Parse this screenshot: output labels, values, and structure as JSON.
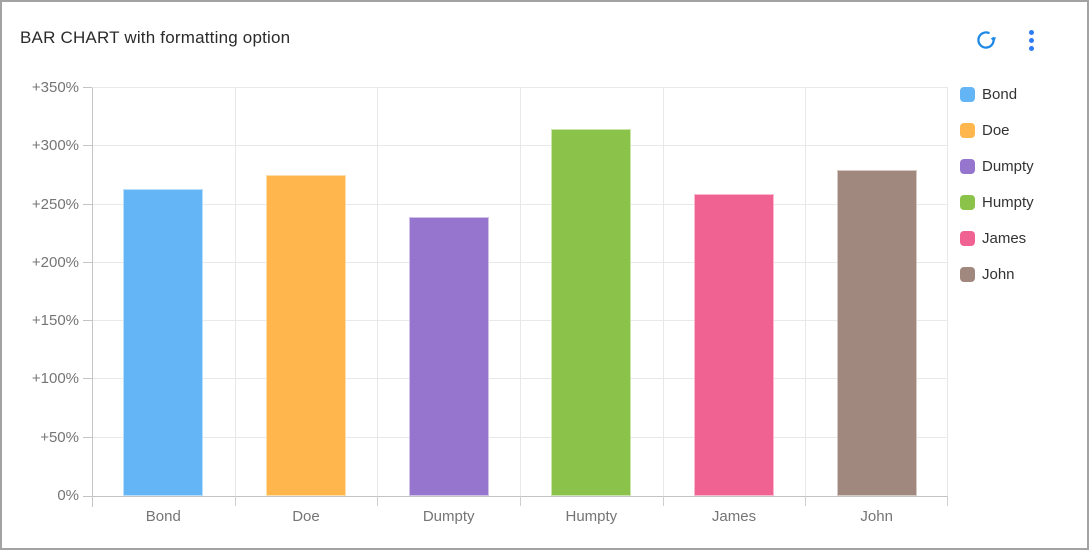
{
  "header": {
    "title": "BAR CHART with formatting option"
  },
  "chart_data": {
    "type": "bar",
    "title": "BAR CHART with formatting option",
    "categories": [
      "Bond",
      "Doe",
      "Dumpty",
      "Humpty",
      "James",
      "John"
    ],
    "values": [
      263,
      275,
      239,
      315,
      259,
      280
    ],
    "value_unit": "%",
    "bar_colors": [
      "#64B5F6",
      "#FFB74D",
      "#9575CD",
      "#8BC34A",
      "#F06292",
      "#A1887F"
    ],
    "xlabel": "",
    "ylabel": "",
    "ylim": [
      0,
      350
    ],
    "y_tick_step": 50,
    "y_tick_labels_bottom_to_top": [
      "0%",
      "+50%",
      "+100%",
      "+150%",
      "+200%",
      "+250%",
      "+300%",
      "+350%"
    ],
    "grid": true,
    "legend_position": "right",
    "legend": [
      "Bond",
      "Doe",
      "Dumpty",
      "Humpty",
      "James",
      "John"
    ]
  },
  "colors": {
    "refresh_icon": "#1E88E5",
    "kebab_icon": "#2E7CF6",
    "card_border": "#A3A3A3",
    "gridline": "#E8E8E8",
    "axis_line": "#C4C4C4",
    "axis_label": "#757575",
    "title_text": "#2B2B2B",
    "legend_text": "#333333"
  }
}
